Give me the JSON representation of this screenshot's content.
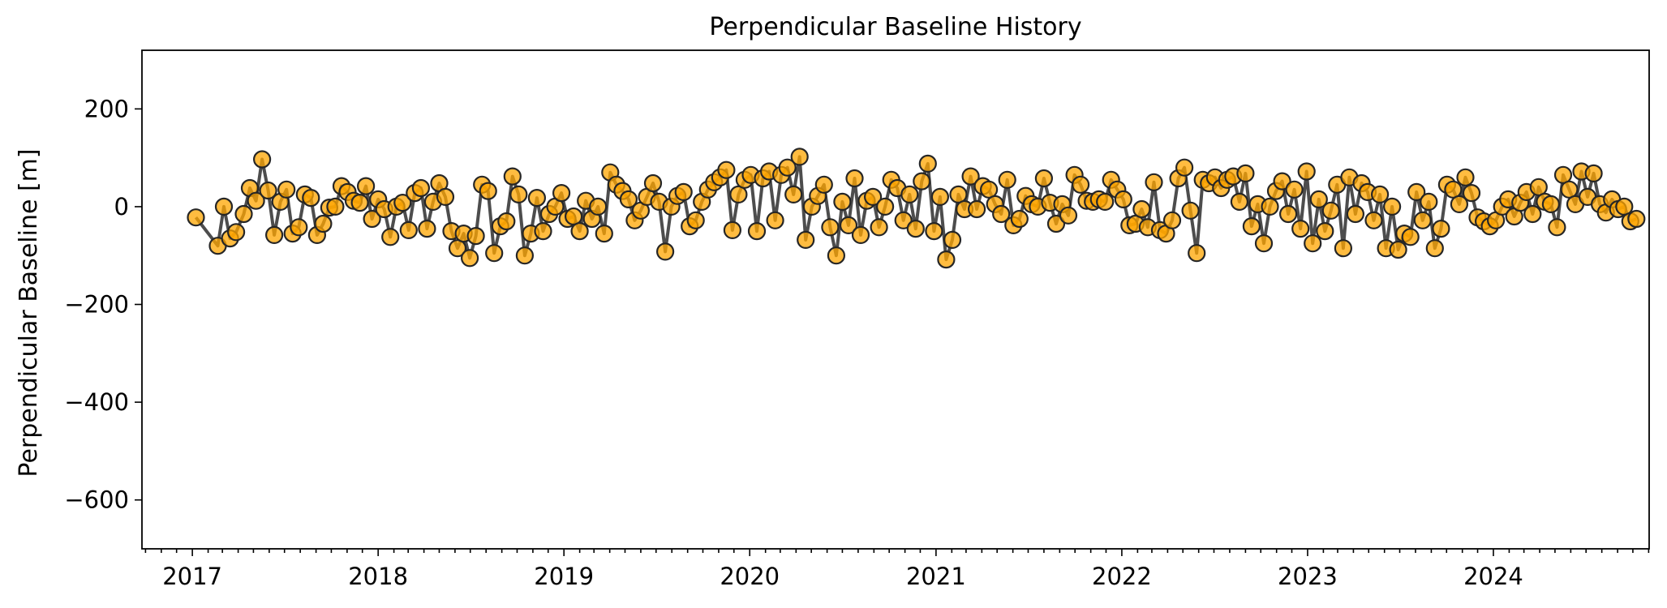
{
  "chart_data": {
    "type": "scatter",
    "title": "Perpendicular Baseline History",
    "xlabel": "",
    "ylabel": "Perpendicular Baseline [m]",
    "xlim": [
      "2016-09-24",
      "2024-11-02"
    ],
    "ylim": [
      -700,
      320
    ],
    "x_ticks": [
      "2017",
      "2018",
      "2019",
      "2020",
      "2021",
      "2022",
      "2023",
      "2024"
    ],
    "y_ticks": [
      200,
      0,
      -200,
      -400,
      -600
    ],
    "y_tick_labels": [
      "200",
      "0",
      "−200",
      "−400",
      "−600"
    ],
    "x_minor_ticks": "monthly",
    "grid": false,
    "legend": "none",
    "marker_color": "#ffa500",
    "marker_edge_color": "#262626",
    "line_color": "#3a3a3a",
    "series": [
      {
        "points": [
          [
            "2017-01-08",
            -22
          ],
          [
            "2017-02-20",
            -80
          ],
          [
            "2017-03-04",
            0
          ],
          [
            "2017-03-16",
            -65
          ],
          [
            "2017-03-28",
            -52
          ],
          [
            "2017-04-12",
            -15
          ],
          [
            "2017-04-24",
            38
          ],
          [
            "2017-05-06",
            12
          ],
          [
            "2017-05-18",
            97
          ],
          [
            "2017-05-30",
            33
          ],
          [
            "2017-06-11",
            -58
          ],
          [
            "2017-06-23",
            10
          ],
          [
            "2017-07-05",
            35
          ],
          [
            "2017-07-17",
            -55
          ],
          [
            "2017-07-29",
            -42
          ],
          [
            "2017-08-10",
            25
          ],
          [
            "2017-08-22",
            18
          ],
          [
            "2017-09-03",
            -58
          ],
          [
            "2017-09-15",
            -35
          ],
          [
            "2017-09-27",
            -2
          ],
          [
            "2017-10-09",
            0
          ],
          [
            "2017-10-21",
            42
          ],
          [
            "2017-11-02",
            30
          ],
          [
            "2017-11-14",
            12
          ],
          [
            "2017-11-26",
            8
          ],
          [
            "2017-12-08",
            42
          ],
          [
            "2017-12-20",
            -25
          ],
          [
            "2018-01-01",
            15
          ],
          [
            "2018-01-13",
            -5
          ],
          [
            "2018-01-25",
            -62
          ],
          [
            "2018-02-06",
            0
          ],
          [
            "2018-02-18",
            8
          ],
          [
            "2018-03-02",
            -48
          ],
          [
            "2018-03-14",
            28
          ],
          [
            "2018-03-26",
            38
          ],
          [
            "2018-04-07",
            -45
          ],
          [
            "2018-04-19",
            10
          ],
          [
            "2018-05-01",
            48
          ],
          [
            "2018-05-13",
            20
          ],
          [
            "2018-05-25",
            -50
          ],
          [
            "2018-06-06",
            -85
          ],
          [
            "2018-06-18",
            -55
          ],
          [
            "2018-06-30",
            -105
          ],
          [
            "2018-07-12",
            -60
          ],
          [
            "2018-07-24",
            45
          ],
          [
            "2018-08-05",
            32
          ],
          [
            "2018-08-17",
            -95
          ],
          [
            "2018-08-29",
            -40
          ],
          [
            "2018-09-10",
            -30
          ],
          [
            "2018-09-22",
            62
          ],
          [
            "2018-10-04",
            25
          ],
          [
            "2018-10-16",
            -100
          ],
          [
            "2018-10-28",
            -55
          ],
          [
            "2018-11-09",
            18
          ],
          [
            "2018-11-21",
            -50
          ],
          [
            "2018-12-03",
            -15
          ],
          [
            "2018-12-15",
            0
          ],
          [
            "2018-12-27",
            28
          ],
          [
            "2019-01-08",
            -25
          ],
          [
            "2019-01-20",
            -20
          ],
          [
            "2019-02-01",
            -50
          ],
          [
            "2019-02-13",
            12
          ],
          [
            "2019-02-25",
            -25
          ],
          [
            "2019-03-09",
            0
          ],
          [
            "2019-03-21",
            -55
          ],
          [
            "2019-04-02",
            70
          ],
          [
            "2019-04-14",
            45
          ],
          [
            "2019-04-26",
            32
          ],
          [
            "2019-05-08",
            15
          ],
          [
            "2019-05-20",
            -28
          ],
          [
            "2019-06-01",
            -8
          ],
          [
            "2019-06-13",
            20
          ],
          [
            "2019-06-25",
            48
          ],
          [
            "2019-07-07",
            10
          ],
          [
            "2019-07-19",
            -92
          ],
          [
            "2019-07-31",
            0
          ],
          [
            "2019-08-12",
            22
          ],
          [
            "2019-08-24",
            30
          ],
          [
            "2019-09-05",
            -40
          ],
          [
            "2019-09-17",
            -28
          ],
          [
            "2019-09-29",
            10
          ],
          [
            "2019-10-11",
            35
          ],
          [
            "2019-10-23",
            50
          ],
          [
            "2019-11-04",
            60
          ],
          [
            "2019-11-16",
            75
          ],
          [
            "2019-11-28",
            -48
          ],
          [
            "2019-12-10",
            25
          ],
          [
            "2019-12-22",
            55
          ],
          [
            "2020-01-03",
            65
          ],
          [
            "2020-01-15",
            -50
          ],
          [
            "2020-01-27",
            58
          ],
          [
            "2020-02-08",
            72
          ],
          [
            "2020-02-20",
            -28
          ],
          [
            "2020-03-03",
            65
          ],
          [
            "2020-03-15",
            80
          ],
          [
            "2020-03-27",
            25
          ],
          [
            "2020-04-08",
            102
          ],
          [
            "2020-04-20",
            -68
          ],
          [
            "2020-05-02",
            0
          ],
          [
            "2020-05-14",
            22
          ],
          [
            "2020-05-26",
            45
          ],
          [
            "2020-06-07",
            -42
          ],
          [
            "2020-06-19",
            -100
          ],
          [
            "2020-07-01",
            10
          ],
          [
            "2020-07-13",
            -38
          ],
          [
            "2020-07-25",
            58
          ],
          [
            "2020-08-06",
            -58
          ],
          [
            "2020-08-18",
            12
          ],
          [
            "2020-08-30",
            20
          ],
          [
            "2020-09-11",
            -42
          ],
          [
            "2020-09-23",
            0
          ],
          [
            "2020-10-05",
            55
          ],
          [
            "2020-10-17",
            38
          ],
          [
            "2020-10-29",
            -28
          ],
          [
            "2020-11-10",
            25
          ],
          [
            "2020-11-22",
            -45
          ],
          [
            "2020-12-04",
            52
          ],
          [
            "2020-12-16",
            88
          ],
          [
            "2020-12-28",
            -50
          ],
          [
            "2021-01-09",
            20
          ],
          [
            "2021-01-21",
            -108
          ],
          [
            "2021-02-02",
            -68
          ],
          [
            "2021-02-14",
            25
          ],
          [
            "2021-02-26",
            -5
          ],
          [
            "2021-03-10",
            62
          ],
          [
            "2021-03-22",
            -5
          ],
          [
            "2021-04-03",
            42
          ],
          [
            "2021-04-15",
            35
          ],
          [
            "2021-04-27",
            5
          ],
          [
            "2021-05-09",
            -15
          ],
          [
            "2021-05-21",
            55
          ],
          [
            "2021-06-02",
            -38
          ],
          [
            "2021-06-14",
            -25
          ],
          [
            "2021-06-26",
            22
          ],
          [
            "2021-07-08",
            5
          ],
          [
            "2021-07-20",
            0
          ],
          [
            "2021-08-01",
            58
          ],
          [
            "2021-08-13",
            8
          ],
          [
            "2021-08-25",
            -35
          ],
          [
            "2021-09-06",
            5
          ],
          [
            "2021-09-18",
            -18
          ],
          [
            "2021-09-30",
            65
          ],
          [
            "2021-10-12",
            45
          ],
          [
            "2021-10-24",
            12
          ],
          [
            "2021-11-05",
            10
          ],
          [
            "2021-11-17",
            15
          ],
          [
            "2021-11-29",
            10
          ],
          [
            "2021-12-11",
            55
          ],
          [
            "2021-12-23",
            35
          ],
          [
            "2022-01-04",
            15
          ],
          [
            "2022-01-16",
            -38
          ],
          [
            "2022-01-28",
            -35
          ],
          [
            "2022-02-09",
            -5
          ],
          [
            "2022-02-21",
            -42
          ],
          [
            "2022-03-05",
            50
          ],
          [
            "2022-03-17",
            -48
          ],
          [
            "2022-03-29",
            -55
          ],
          [
            "2022-04-10",
            -28
          ],
          [
            "2022-04-22",
            58
          ],
          [
            "2022-05-04",
            80
          ],
          [
            "2022-05-16",
            -8
          ],
          [
            "2022-05-28",
            -95
          ],
          [
            "2022-06-09",
            55
          ],
          [
            "2022-06-21",
            48
          ],
          [
            "2022-07-03",
            60
          ],
          [
            "2022-07-15",
            38
          ],
          [
            "2022-07-27",
            55
          ],
          [
            "2022-08-08",
            62
          ],
          [
            "2022-08-20",
            10
          ],
          [
            "2022-09-01",
            68
          ],
          [
            "2022-09-13",
            -40
          ],
          [
            "2022-09-25",
            5
          ],
          [
            "2022-10-07",
            -75
          ],
          [
            "2022-10-19",
            0
          ],
          [
            "2022-10-31",
            32
          ],
          [
            "2022-11-12",
            52
          ],
          [
            "2022-11-24",
            -15
          ],
          [
            "2022-12-06",
            35
          ],
          [
            "2022-12-18",
            -45
          ],
          [
            "2022-12-30",
            72
          ],
          [
            "2023-01-11",
            -75
          ],
          [
            "2023-01-23",
            15
          ],
          [
            "2023-02-04",
            -50
          ],
          [
            "2023-02-16",
            -8
          ],
          [
            "2023-02-28",
            45
          ],
          [
            "2023-03-12",
            -85
          ],
          [
            "2023-03-24",
            60
          ],
          [
            "2023-04-05",
            -15
          ],
          [
            "2023-04-17",
            48
          ],
          [
            "2023-04-29",
            30
          ],
          [
            "2023-05-11",
            -28
          ],
          [
            "2023-05-23",
            25
          ],
          [
            "2023-06-04",
            -85
          ],
          [
            "2023-06-16",
            0
          ],
          [
            "2023-06-28",
            -88
          ],
          [
            "2023-07-10",
            -55
          ],
          [
            "2023-07-22",
            -62
          ],
          [
            "2023-08-03",
            30
          ],
          [
            "2023-08-15",
            -28
          ],
          [
            "2023-08-27",
            10
          ],
          [
            "2023-09-08",
            -85
          ],
          [
            "2023-09-20",
            -45
          ],
          [
            "2023-10-02",
            45
          ],
          [
            "2023-10-14",
            35
          ],
          [
            "2023-10-26",
            5
          ],
          [
            "2023-11-07",
            60
          ],
          [
            "2023-11-19",
            28
          ],
          [
            "2023-12-01",
            -22
          ],
          [
            "2023-12-13",
            -30
          ],
          [
            "2023-12-25",
            -40
          ],
          [
            "2024-01-06",
            -28
          ],
          [
            "2024-01-18",
            0
          ],
          [
            "2024-01-30",
            15
          ],
          [
            "2024-02-11",
            -20
          ],
          [
            "2024-02-23",
            8
          ],
          [
            "2024-03-06",
            30
          ],
          [
            "2024-03-18",
            -15
          ],
          [
            "2024-03-30",
            40
          ],
          [
            "2024-04-11",
            10
          ],
          [
            "2024-04-23",
            5
          ],
          [
            "2024-05-05",
            -42
          ],
          [
            "2024-05-17",
            65
          ],
          [
            "2024-05-29",
            35
          ],
          [
            "2024-06-10",
            5
          ],
          [
            "2024-06-22",
            72
          ],
          [
            "2024-07-04",
            20
          ],
          [
            "2024-07-16",
            68
          ],
          [
            "2024-07-28",
            5
          ],
          [
            "2024-08-09",
            -12
          ],
          [
            "2024-08-21",
            15
          ],
          [
            "2024-09-02",
            -5
          ],
          [
            "2024-09-14",
            0
          ],
          [
            "2024-09-26",
            -30
          ],
          [
            "2024-10-08",
            -25
          ]
        ]
      }
    ]
  }
}
